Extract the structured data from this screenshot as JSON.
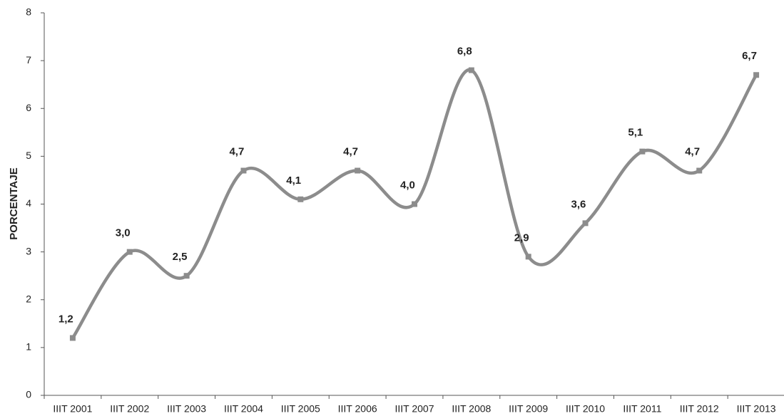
{
  "chart_data": {
    "type": "line",
    "y_label": "PORCENTAJE",
    "categories": [
      "IIIT 2001",
      "IIIT 2002",
      "IIIT 2003",
      "IIIT 2004",
      "IIIT 2005",
      "IIIT 2006",
      "IIIT 2007",
      "IIIT 2008",
      "IIIT 2009",
      "IIIT 2010",
      "IIIT 2011",
      "IIIT 2012",
      "IIIT 2013"
    ],
    "series": [
      {
        "color": "#8c8c8c",
        "values": [
          1.2,
          3.0,
          2.5,
          4.7,
          4.1,
          4.7,
          4.0,
          6.8,
          2.9,
          3.6,
          5.1,
          4.7,
          6.7
        ],
        "value_labels": [
          "1,2",
          "3,0",
          "2,5",
          "4,7",
          "4,1",
          "4,7",
          "4,0",
          "6,8",
          "2,9",
          "3,6",
          "5,1",
          "4,7",
          "6,7"
        ]
      }
    ],
    "ylim": [
      0,
      8
    ],
    "yticks": [
      0,
      1,
      2,
      3,
      4,
      5,
      6,
      7,
      8
    ],
    "smooth": true
  }
}
